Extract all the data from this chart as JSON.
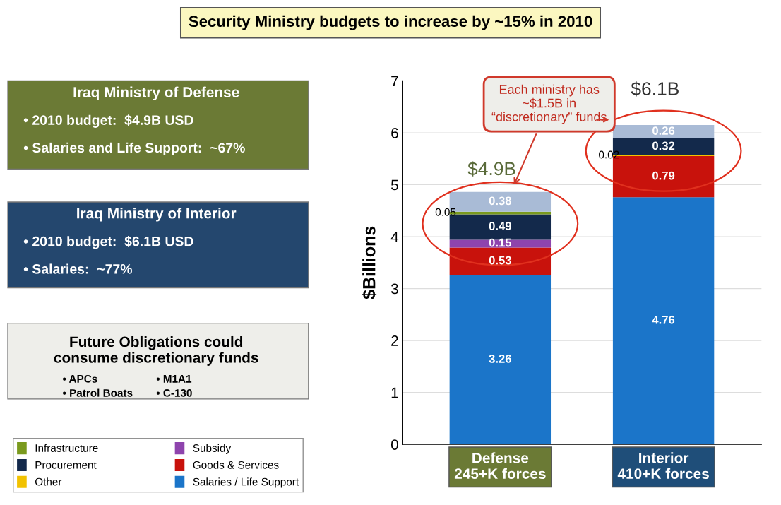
{
  "chart_data": {
    "type": "bar",
    "stacked": true,
    "title": "Security Ministry budgets to increase by ~15% in 2010",
    "ylabel": "$Billions",
    "categories": [
      "Defense\n245+K forces",
      "Interior\n410+K forces"
    ],
    "series": [
      {
        "name": "Salaries / Life Support",
        "color": "#1b75c9",
        "values": [
          3.26,
          4.76
        ],
        "value_labels": [
          "3.26",
          "4.76"
        ]
      },
      {
        "name": "Goods & Services",
        "color": "#c8120c",
        "values": [
          0.53,
          0.79
        ],
        "value_labels": [
          "0.53",
          "0.79"
        ]
      },
      {
        "name": "Subsidy",
        "color": "#8e44ad",
        "values": [
          0.15,
          null
        ],
        "value_labels": [
          "0.15",
          null
        ]
      },
      {
        "name": "Other",
        "color": "#f2c200",
        "values": [
          null,
          0.02
        ],
        "value_labels": [
          null,
          "0.02"
        ]
      },
      {
        "name": "Procurement",
        "color": "#13294b",
        "values": [
          0.49,
          0.32
        ],
        "value_labels": [
          "0.49",
          "0.32"
        ]
      },
      {
        "name": "Infrastructure",
        "color": "#7a9a1e",
        "values": [
          0.05,
          null
        ],
        "value_labels": [
          "0.05",
          null
        ]
      },
      {
        "color": "#a9bbd6",
        "values": [
          0.38,
          0.26
        ],
        "value_labels": [
          "0.38",
          "0.26"
        ]
      }
    ],
    "totals": [
      "$4.9B",
      "$6.1B"
    ],
    "ylim": [
      0,
      7
    ],
    "yticks": [
      0,
      1,
      2,
      3,
      4,
      5,
      6,
      7
    ],
    "grid": "y",
    "legend": "bottom left",
    "annotations": [
      "Each ministry has\n~$1.5B in\n“discretionary” funds",
      "Iraq Ministry of Defense",
      "• 2010 budget:  $4.9B USD",
      "• Salaries and Life Support:  ~67%",
      "Iraq Ministry of Interior",
      "• 2010 budget:  $6.1B USD",
      "• Salaries:  ~77%",
      "Future Obligations could\nconsume discretionary funds",
      "• APCs",
      "• M1A1",
      "• Patrol Boats",
      "• C-130"
    ]
  }
}
